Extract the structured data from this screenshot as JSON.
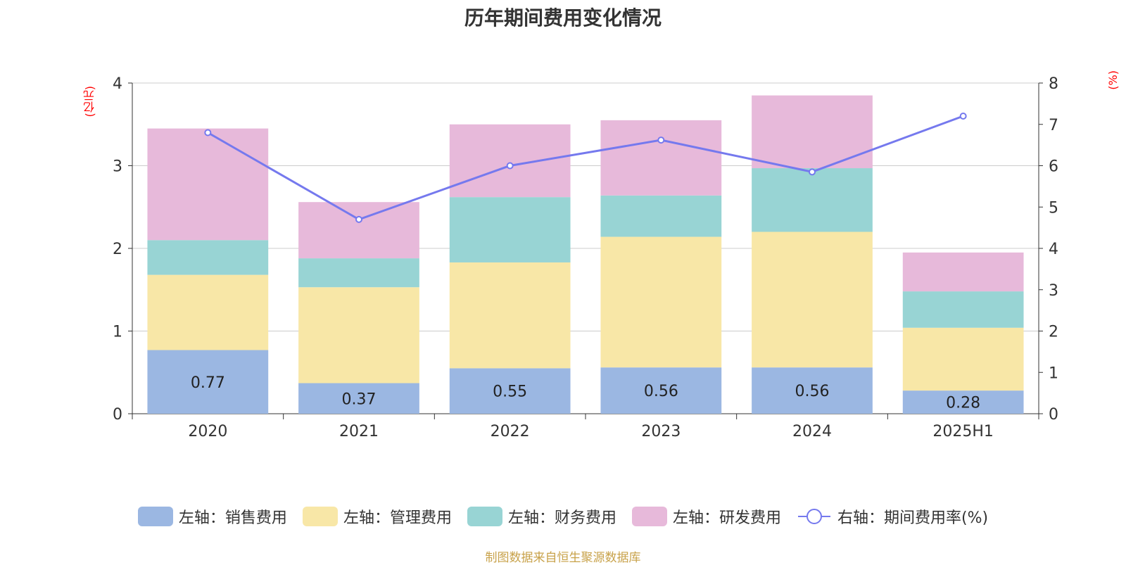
{
  "chart_data": {
    "type": "bar",
    "title": "历年期间费用变化情况",
    "left_unit": "(亿元)",
    "right_unit": "(%)",
    "categories": [
      "2020",
      "2021",
      "2022",
      "2023",
      "2024",
      "2025H1"
    ],
    "ylim_left": [
      0,
      4
    ],
    "yticks_left": [
      0,
      1,
      2,
      3,
      4
    ],
    "ylim_right": [
      0,
      8
    ],
    "yticks_right": [
      0,
      1,
      2,
      3,
      4,
      5,
      6,
      7,
      8
    ],
    "grid": true,
    "legend_position": "bottom",
    "series": [
      {
        "name": "左轴：销售费用",
        "axis": "left",
        "color": "#9bb7e2",
        "values": [
          0.77,
          0.37,
          0.55,
          0.56,
          0.56,
          0.28
        ],
        "labels": [
          "0.77",
          "0.37",
          "0.55",
          "0.56",
          "0.56",
          "0.28"
        ]
      },
      {
        "name": "左轴：管理费用",
        "axis": "left",
        "color": "#f8e7a7",
        "values": [
          0.91,
          1.16,
          1.28,
          1.58,
          1.64,
          0.76
        ]
      },
      {
        "name": "左轴：财务费用",
        "axis": "left",
        "color": "#98d4d4",
        "values": [
          0.42,
          0.35,
          0.79,
          0.5,
          0.77,
          0.44
        ]
      },
      {
        "name": "左轴：研发费用",
        "axis": "left",
        "color": "#e7b9da",
        "values": [
          1.35,
          0.68,
          0.88,
          0.91,
          0.88,
          0.47
        ]
      },
      {
        "name": "右轴：期间费用率(%)",
        "axis": "right",
        "type": "line",
        "color": "#7579ee",
        "values": [
          6.8,
          4.7,
          6.0,
          6.62,
          5.85,
          7.2
        ]
      }
    ]
  },
  "source": "制图数据来自恒生聚源数据库"
}
